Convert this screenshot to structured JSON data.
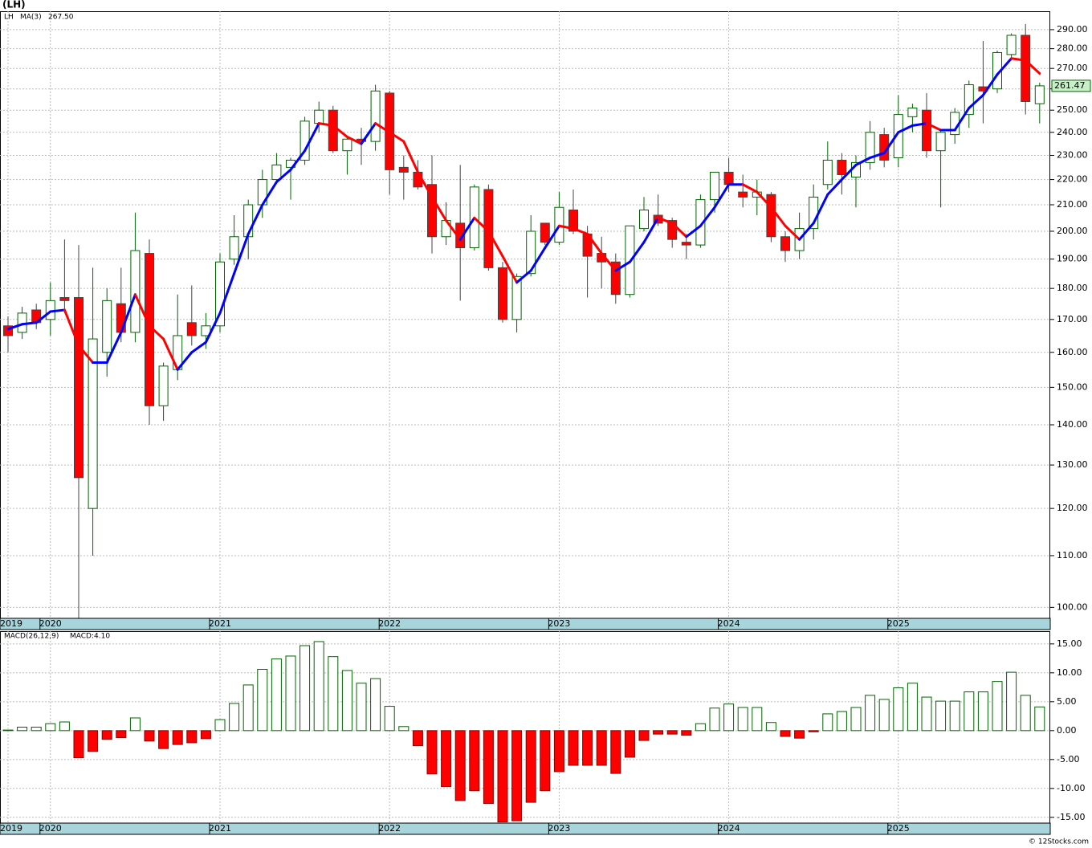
{
  "title": "(LH)",
  "footer": "© 12Stocks.com",
  "chart_data": [
    {
      "type": "candlestick",
      "symbol": "LH",
      "log_scale": true,
      "grid": true,
      "categories": [
        "2019",
        null,
        null,
        "2020",
        null,
        null,
        null,
        null,
        null,
        null,
        null,
        null,
        null,
        null,
        null,
        "2021",
        null,
        null,
        null,
        null,
        null,
        null,
        null,
        null,
        null,
        null,
        null,
        "2022",
        null,
        null,
        null,
        null,
        null,
        null,
        null,
        null,
        null,
        null,
        null,
        "2023",
        null,
        null,
        null,
        null,
        null,
        null,
        null,
        null,
        null,
        null,
        null,
        "2024",
        null,
        null,
        null,
        null,
        null,
        null,
        null,
        null,
        null,
        null,
        null,
        "2025",
        null,
        null,
        null,
        null,
        null,
        null,
        null,
        null,
        null,
        null
      ],
      "open": [
        168,
        166,
        173,
        170,
        177,
        177,
        120,
        160,
        175,
        166,
        192,
        145,
        155,
        169,
        165,
        168,
        190,
        198,
        210,
        220,
        225,
        228,
        244,
        250,
        232,
        237,
        236,
        258,
        225,
        223,
        218,
        198,
        203,
        194,
        216,
        187,
        170,
        185,
        203,
        196,
        208,
        199,
        192,
        189,
        178,
        201,
        206,
        204,
        196,
        195,
        212,
        223,
        215,
        213,
        214,
        198,
        193,
        201,
        218,
        228,
        221,
        227,
        239,
        229,
        247,
        250,
        232,
        239,
        248,
        261,
        260,
        277,
        287,
        253
      ],
      "high": [
        171,
        174,
        175,
        182,
        197,
        195,
        187,
        180,
        187,
        207,
        197,
        157,
        178,
        181,
        172,
        192,
        206,
        212,
        224,
        231,
        229,
        247,
        254,
        252,
        238,
        242,
        262,
        259,
        230,
        228,
        230,
        211,
        226,
        218,
        218,
        189,
        185,
        206,
        203,
        215,
        216,
        202,
        198,
        192,
        202,
        213,
        214,
        205,
        199,
        214,
        223,
        229,
        222,
        220,
        215,
        200,
        207,
        218,
        236,
        231,
        230,
        245,
        242,
        257,
        253,
        258,
        241,
        251,
        264,
        284,
        279,
        288,
        293,
        263
      ],
      "low": [
        160,
        164,
        167,
        165,
        172,
        98,
        110,
        153,
        163,
        163,
        140,
        141,
        152,
        162,
        161,
        166,
        188,
        190,
        205,
        219,
        212,
        226,
        240,
        231,
        222,
        226,
        232,
        214,
        212,
        216,
        192,
        195,
        176,
        193,
        186,
        169,
        166,
        184,
        195,
        195,
        199,
        177,
        180,
        175,
        177,
        200,
        202,
        194,
        190,
        194,
        207,
        215,
        209,
        206,
        196,
        189,
        190,
        197,
        216,
        214,
        209,
        224,
        225,
        225,
        240,
        229,
        209,
        235,
        242,
        244,
        258,
        274,
        248,
        244
      ],
      "close": [
        165,
        172,
        169,
        176,
        176,
        127,
        164,
        176,
        166,
        193,
        145,
        156,
        165,
        165,
        168,
        189,
        198,
        210,
        220,
        226,
        228,
        245,
        250,
        232,
        237,
        236,
        259,
        224,
        223,
        217,
        198,
        204,
        194,
        217,
        187,
        170,
        184,
        200,
        196,
        209,
        200,
        191,
        189,
        178,
        202,
        208,
        203,
        197,
        195,
        212,
        223,
        218,
        213,
        215,
        198,
        193,
        201,
        213,
        228,
        222,
        227,
        240,
        228,
        248,
        251,
        232,
        240,
        249,
        262,
        259,
        278,
        287,
        254,
        261.47
      ],
      "up_color": "#006400",
      "down_color": "#ff0000",
      "ma": {
        "name": "MA(3)",
        "up_color": "#0000ff",
        "down_color": "#ff0000",
        "value_label": "267.50",
        "values": [
          167,
          168.5,
          169,
          172.5,
          173,
          162,
          157,
          157,
          166,
          178,
          168,
          164,
          155,
          160,
          163,
          172,
          185,
          199,
          210,
          219,
          224,
          232,
          244,
          243,
          238,
          235,
          244,
          240,
          236,
          223,
          213,
          204,
          197,
          205,
          200,
          191,
          182,
          186,
          194,
          202,
          201,
          199,
          192,
          186,
          189,
          196,
          205,
          203,
          198,
          202,
          209,
          218,
          218,
          215,
          209,
          202,
          197,
          203,
          214,
          220,
          226,
          229,
          231,
          240,
          243,
          244,
          241,
          241,
          251,
          257,
          267,
          275,
          274,
          267.5
        ]
      },
      "ylim": [
        98,
        300
      ],
      "yticks": [
        {
          "value": 100,
          "label": "100.00"
        },
        {
          "value": 110,
          "label": "110.00"
        },
        {
          "value": 120,
          "label": "120.00"
        },
        {
          "value": 130,
          "label": "130.00"
        },
        {
          "value": 140,
          "label": "140.00"
        },
        {
          "value": 150,
          "label": "150.00"
        },
        {
          "value": 160,
          "label": "160.00"
        },
        {
          "value": 170,
          "label": "170.00"
        },
        {
          "value": 180,
          "label": "180.00"
        },
        {
          "value": 190,
          "label": "190.00"
        },
        {
          "value": 200,
          "label": "200.00"
        },
        {
          "value": 210,
          "label": "210.00"
        },
        {
          "value": 220,
          "label": "220.00"
        },
        {
          "value": 230,
          "label": "230.00"
        },
        {
          "value": 240,
          "label": "240.00"
        },
        {
          "value": 250,
          "label": "250.00"
        },
        {
          "value": 260,
          "label": "260.00"
        },
        {
          "value": 270,
          "label": "270.00"
        },
        {
          "value": 280,
          "label": "280.00"
        },
        {
          "value": 290,
          "label": "290.00"
        }
      ]
    },
    {
      "type": "bar",
      "name": "MACD(26,12,9)",
      "value_label": "MACD:4.10",
      "up_color": "#006400",
      "down_color": "#ff0000",
      "grid": true,
      "values": [
        0.1,
        0.6,
        0.6,
        1.2,
        1.5,
        -4.7,
        -3.6,
        -1.5,
        -1.2,
        2.2,
        -1.8,
        -3.1,
        -2.4,
        -2.1,
        -1.4,
        1.9,
        4.7,
        7.9,
        10.6,
        12.4,
        12.9,
        14.7,
        15.4,
        12.8,
        10.4,
        8.2,
        9.0,
        4.2,
        0.7,
        -2.6,
        -7.5,
        -9.7,
        -12.1,
        -10.4,
        -12.6,
        -15.8,
        -15.6,
        -12.4,
        -10.4,
        -7.1,
        -6.0,
        -6.0,
        -6.0,
        -7.4,
        -4.6,
        -1.7,
        -0.6,
        -0.6,
        -0.8,
        1.2,
        3.9,
        4.6,
        4.0,
        4.0,
        1.4,
        -1.0,
        -1.3,
        -0.2,
        2.9,
        3.3,
        4.0,
        6.1,
        5.4,
        7.4,
        8.2,
        5.8,
        5.1,
        5.1,
        6.7,
        6.7,
        8.5,
        10.1,
        6.1,
        4.1
      ],
      "ylim": [
        -16,
        17.2
      ],
      "yticks": [
        {
          "value": 15,
          "label": "15.00"
        },
        {
          "value": 10,
          "label": "10.00"
        },
        {
          "value": 5,
          "label": "5.00"
        },
        {
          "value": 0,
          "label": "0.00"
        },
        {
          "value": -5,
          "label": "-5.00"
        },
        {
          "value": -10,
          "label": "-10.00"
        },
        {
          "value": -15,
          "label": "-15.00"
        }
      ]
    }
  ]
}
